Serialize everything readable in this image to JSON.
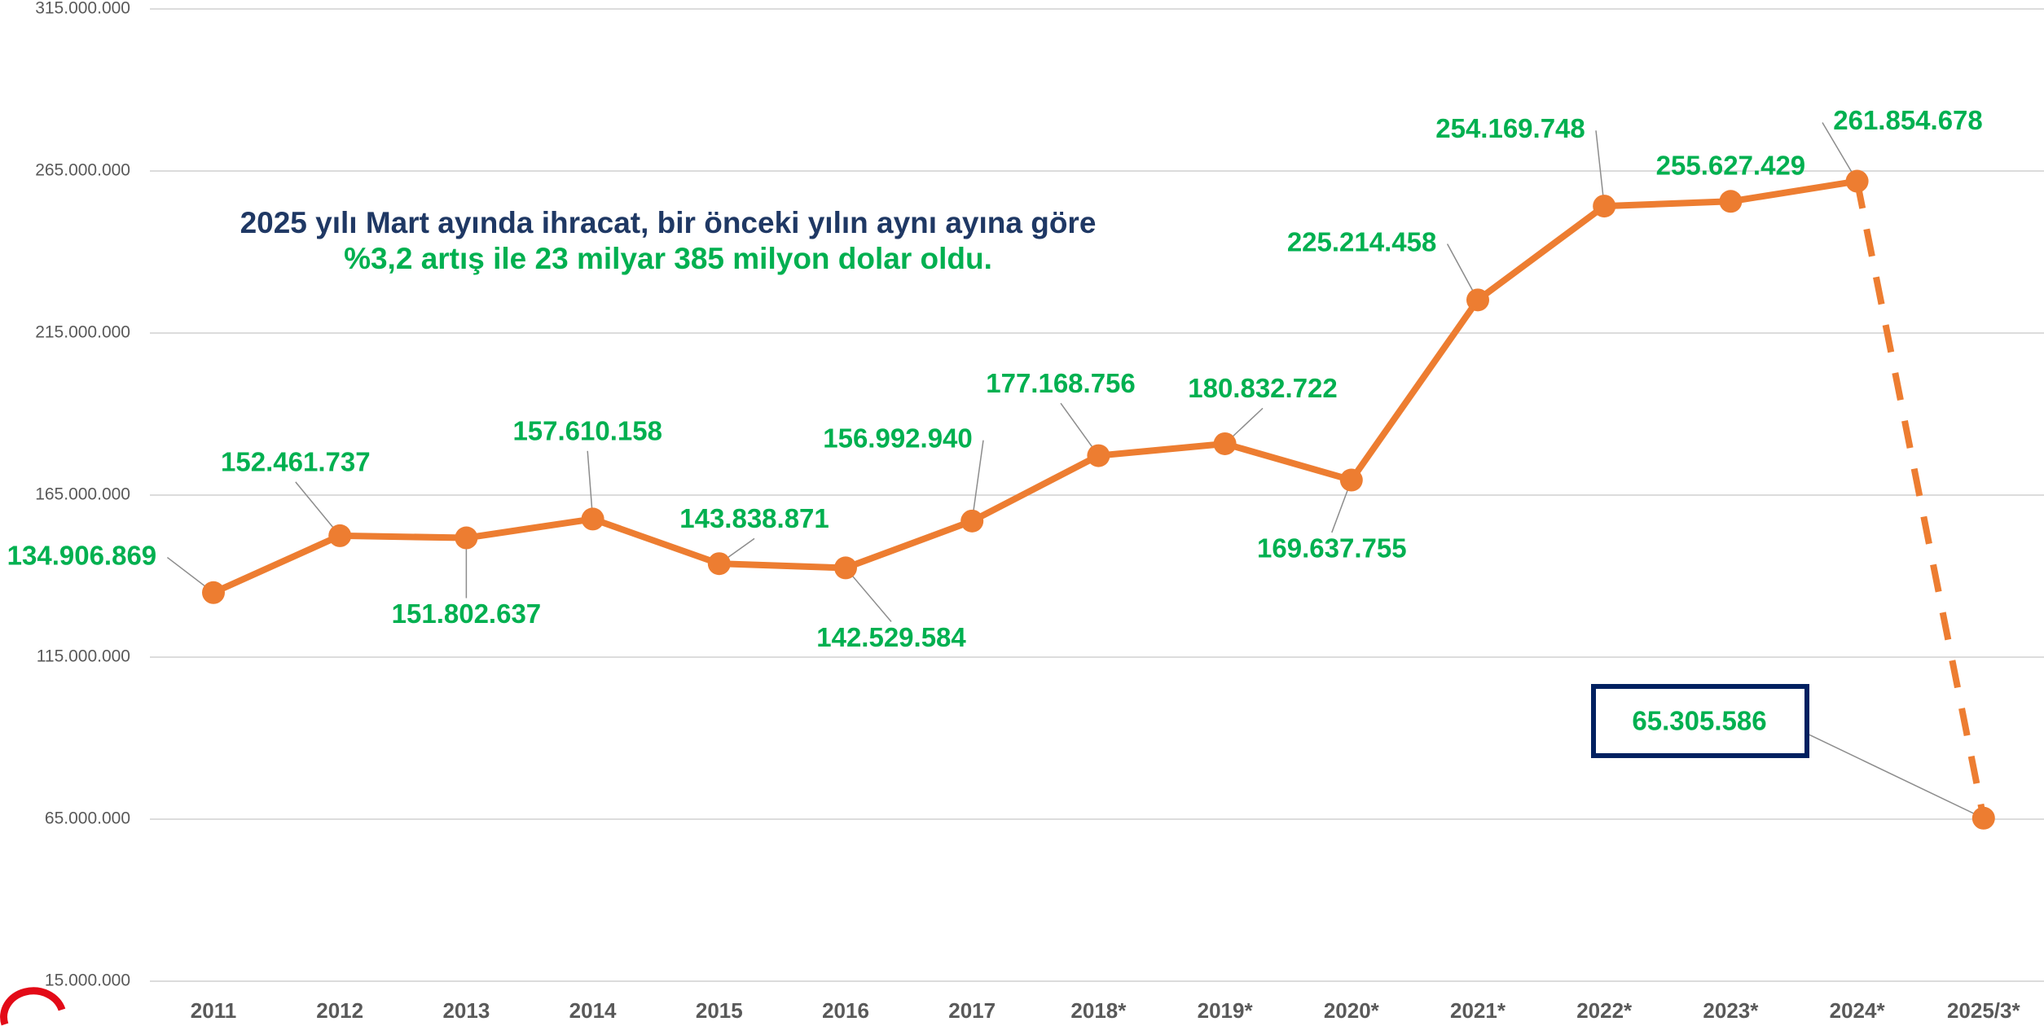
{
  "chart_data": {
    "type": "line",
    "annotations": [
      "2025 yılı Mart ayında ihracat, bir önceki yılın aynı ayına göre",
      "%3,2 artış ile 23 milyar 385 milyon dolar oldu."
    ],
    "categories": [
      "2011",
      "2012",
      "2013",
      "2014",
      "2015",
      "2016",
      "2017",
      "2018*",
      "2019*",
      "2020*",
      "2021*",
      "2022*",
      "2023*",
      "2024*",
      "2025/3*"
    ],
    "series": [
      {
        "color": "#ED7D31",
        "values": [
          134906869,
          152461737,
          151802637,
          157610158,
          143838871,
          142529584,
          156992940,
          177168756,
          180832722,
          169637755,
          225214458,
          254169748,
          255627429,
          261854678,
          65305586
        ],
        "value_labels": [
          "134.906.869",
          "152.461.737",
          "151.802.637",
          "157.610.158",
          "143.838.871",
          "142.529.584",
          "156.992.940",
          "177.168.756",
          "180.832.722",
          "169.637.755",
          "225.214.458",
          "254.169.748",
          "255.627.429",
          "261.854.678",
          "65.305.586"
        ]
      }
    ],
    "ylim": [
      15000000,
      315000000
    ],
    "yticks": [
      {
        "value": 15000000,
        "label": "15.000.000"
      },
      {
        "value": 65000000,
        "label": "65.000.000"
      },
      {
        "value": 115000000,
        "label": "115.000.000"
      },
      {
        "value": 165000000,
        "label": "165.000.000"
      },
      {
        "value": 215000000,
        "label": "215.000.000"
      },
      {
        "value": 265000000,
        "label": "265.000.000"
      },
      {
        "value": 315000000,
        "label": "315.000.000"
      }
    ],
    "grid": true
  }
}
